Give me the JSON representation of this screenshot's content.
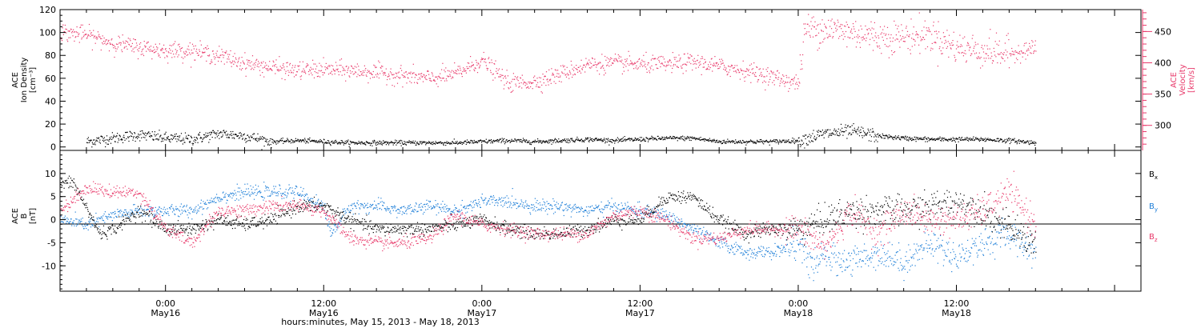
{
  "colors": {
    "density": "#000000",
    "velocity": "#e8396a",
    "bx": "#000000",
    "by": "#1e7fd8",
    "bz": "#e8396a",
    "frame": "#000000"
  },
  "chart_data": [
    {
      "type": "scatter",
      "panel": "top",
      "left_axis_label_lines": [
        "ACE",
        "Ion Density",
        "[cm⁻³]"
      ],
      "right_axis_label_lines": [
        "ACE",
        "Velocity",
        "[km/s]"
      ],
      "x_range_hours": [
        -8,
        74
      ],
      "ylim_left": [
        -3,
        120
      ],
      "yticks_left": [
        "0",
        "20",
        "40",
        "60",
        "80",
        "100",
        "120"
      ],
      "ylim_right": [
        260,
        485
      ],
      "yticks_right": [
        "300",
        "350",
        "400",
        "450"
      ],
      "series": [
        {
          "key": "density",
          "x": [
            -6,
            -4,
            -2,
            0,
            2,
            4,
            6,
            8,
            10,
            12,
            14,
            16,
            18,
            20,
            22,
            24,
            26,
            28,
            30,
            32,
            34,
            36,
            38,
            40,
            42,
            44,
            46,
            48,
            50,
            52,
            54,
            56,
            58,
            60,
            62,
            64,
            66
          ],
          "values": [
            5,
            8,
            11,
            8,
            7,
            12,
            10,
            5,
            6,
            5,
            4,
            4,
            4,
            4,
            4,
            5,
            6,
            5,
            6,
            7,
            6,
            7,
            8,
            8,
            5,
            5,
            5,
            6,
            12,
            14,
            10,
            8,
            7,
            7,
            7,
            6,
            4
          ]
        },
        {
          "key": "velocity",
          "x": [
            -8,
            -6,
            -4,
            -2,
            0,
            2,
            4,
            6,
            8,
            10,
            12,
            14,
            16,
            18,
            20,
            22,
            24,
            26,
            28,
            30,
            32,
            34,
            36,
            38,
            40,
            42,
            44,
            46,
            48,
            48.5,
            50,
            52,
            54,
            56,
            58,
            60,
            62,
            64,
            66
          ],
          "values": [
            450,
            445,
            432,
            425,
            420,
            420,
            412,
            400,
            393,
            388,
            390,
            388,
            385,
            380,
            375,
            383,
            405,
            368,
            370,
            383,
            398,
            400,
            398,
            398,
            402,
            395,
            388,
            378,
            368,
            455,
            455,
            450,
            442,
            442,
            445,
            425,
            420,
            415,
            425
          ]
        }
      ]
    },
    {
      "type": "scatter",
      "panel": "bottom",
      "y_axis_label_lines": [
        "ACE",
        "B",
        "[nT]"
      ],
      "x_range_hours": [
        -8,
        74
      ],
      "ylim": [
        -15.5,
        15
      ],
      "yticks": [
        "-10",
        "-5",
        "0",
        "5",
        "10"
      ],
      "x_tick_labels": [
        "0:00",
        "12:00",
        "0:00",
        "12:00",
        "0:00",
        "12:00"
      ],
      "x_tick_hours": [
        0,
        12,
        24,
        36,
        48,
        60
      ],
      "x_tick_sublabels": [
        "May16",
        "May16",
        "May17",
        "May17",
        "May18",
        "May18"
      ],
      "xlabel": "hours:minutes, May 15, 2013 - May 18, 2013",
      "legend": [
        {
          "key": "bx",
          "label": "B",
          "sub": "x"
        },
        {
          "key": "by",
          "label": "B",
          "sub": "y"
        },
        {
          "key": "bz",
          "label": "B",
          "sub": "z"
        }
      ],
      "series": [
        {
          "key": "bx",
          "x": [
            -8,
            -7,
            -5,
            -4,
            -2,
            0,
            2,
            4,
            6,
            8,
            10,
            12,
            14,
            16,
            18,
            20,
            22,
            24,
            26,
            28,
            30,
            32,
            34,
            36,
            38,
            40,
            42,
            44,
            46,
            48,
            50,
            52,
            54,
            56,
            58,
            60,
            62,
            64,
            66
          ],
          "values": [
            8,
            8,
            -3,
            -2,
            2,
            -2,
            -2,
            0,
            -1,
            0,
            3,
            3,
            0,
            -2,
            -2,
            -2,
            -1,
            0,
            -2,
            -3,
            -3,
            -2,
            0,
            0,
            5,
            5,
            0,
            -3,
            -2,
            -2,
            0,
            2,
            2,
            2,
            3,
            4,
            2,
            -2,
            -5
          ]
        },
        {
          "key": "by",
          "x": [
            -8,
            -6,
            -4,
            -2,
            0,
            2,
            4,
            6,
            8,
            10,
            12,
            12.5,
            14,
            16,
            18,
            20,
            22,
            24,
            26,
            28,
            30,
            32,
            34,
            36,
            38,
            40,
            42,
            44,
            46,
            48,
            49,
            50,
            52,
            54,
            56,
            58,
            60,
            62,
            64,
            66
          ],
          "values": [
            0,
            -1,
            1,
            2,
            2,
            2,
            5,
            6,
            6,
            6,
            3,
            -3,
            3,
            3,
            2,
            3,
            2,
            4,
            4,
            3,
            3,
            2,
            3,
            2,
            1,
            -2,
            -5,
            -7,
            -7,
            -5,
            -10,
            -8,
            -9,
            -7,
            -9,
            -5,
            -8,
            -5,
            -3,
            -7
          ]
        },
        {
          "key": "bz",
          "x": [
            -8,
            -6,
            -4,
            -2,
            0,
            2,
            4,
            6,
            8,
            10,
            12,
            14,
            16,
            18,
            20,
            22,
            24,
            26,
            28,
            30,
            32,
            34,
            36,
            38,
            40,
            42,
            44,
            46,
            48,
            50,
            52,
            54,
            56,
            58,
            60,
            62,
            64,
            66
          ],
          "values": [
            2,
            7,
            6,
            6,
            -2,
            -5,
            2,
            2,
            3,
            3,
            2,
            -4,
            -5,
            -5,
            -4,
            1,
            -1,
            -2,
            -3,
            -3,
            -3,
            1,
            2,
            0,
            -4,
            -4,
            -2,
            -2,
            -2,
            -6,
            2,
            -3,
            2,
            0,
            0,
            2,
            6,
            -1
          ]
        }
      ]
    }
  ]
}
